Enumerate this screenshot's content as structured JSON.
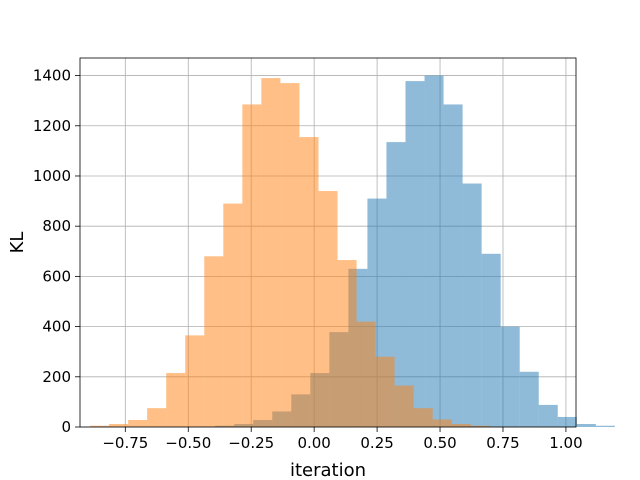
{
  "chart_data": {
    "type": "bar",
    "subtype": "overlapping-histogram",
    "title": "",
    "xlabel": "iteration",
    "ylabel": "KL",
    "xlim": [
      -0.93,
      1.04
    ],
    "ylim": [
      0,
      1470
    ],
    "grid": true,
    "x_ticks": [
      -0.75,
      -0.5,
      -0.25,
      0.0,
      0.25,
      0.5,
      0.75,
      1.0
    ],
    "x_tick_labels": [
      "−0.75",
      "−0.50",
      "−0.25",
      "0.00",
      "0.25",
      "0.50",
      "0.75",
      "1.00"
    ],
    "y_ticks": [
      0,
      200,
      400,
      600,
      800,
      1000,
      1200,
      1400
    ],
    "y_tick_labels": [
      "0",
      "200",
      "400",
      "600",
      "800",
      "1000",
      "1200",
      "1400"
    ],
    "bin_width": 0.0756,
    "series": [
      {
        "color": "#1f77b4",
        "alpha": 0.5,
        "bin_start": -0.62,
        "values": [
          1,
          1,
          2,
          5,
          12,
          28,
          62,
          130,
          215,
          378,
          630,
          910,
          1135,
          1378,
          1400,
          1285,
          970,
          690,
          400,
          220,
          88,
          40,
          12,
          5
        ]
      },
      {
        "color": "#ff7f0e",
        "alpha": 0.5,
        "bin_start": -0.89,
        "values": [
          5,
          12,
          28,
          75,
          215,
          365,
          680,
          890,
          1285,
          1390,
          1370,
          1155,
          940,
          665,
          420,
          280,
          165,
          75,
          30,
          12,
          5,
          2,
          1,
          1
        ]
      }
    ]
  }
}
